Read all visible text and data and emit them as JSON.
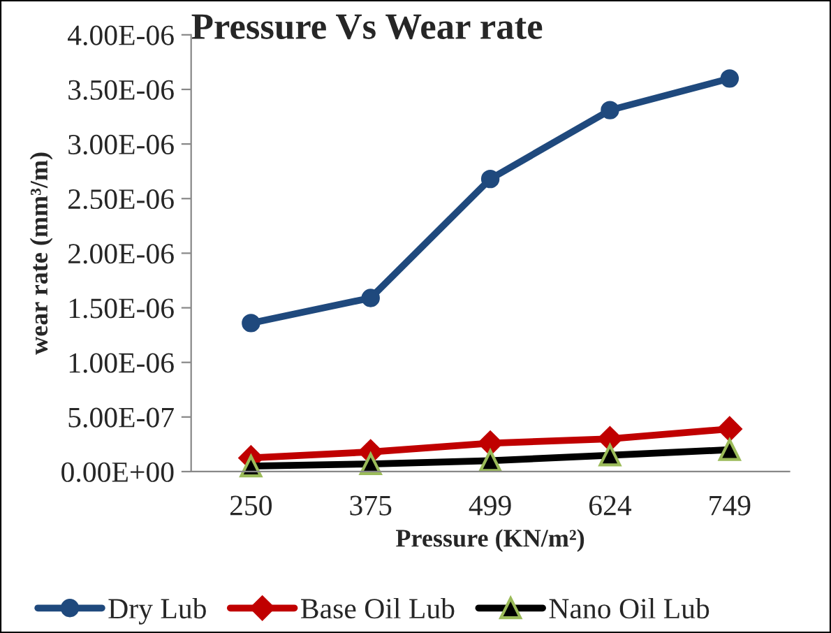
{
  "chart_data": {
    "type": "line",
    "title": "Pressure Vs Wear rate",
    "xlabel": "Pressure (KN/m²)",
    "ylabel": "wear rate (mm³/m)",
    "categories": [
      "250",
      "375",
      "499",
      "624",
      "749"
    ],
    "series": [
      {
        "name": "Dry Lub",
        "color": "#1f497d",
        "marker": "circle",
        "values": [
          1.36e-06,
          1.59e-06,
          2.68e-06,
          3.31e-06,
          3.6e-06
        ]
      },
      {
        "name": "Base Oil Lub",
        "color": "#c00000",
        "marker": "diamond",
        "values": [
          1.25e-07,
          1.8e-07,
          2.6e-07,
          3e-07,
          3.9e-07
        ]
      },
      {
        "name": "Nano Oil Lub",
        "color": "#000000",
        "marker": "triangle",
        "values": [
          5e-08,
          7e-08,
          1e-07,
          1.5e-07,
          2e-07
        ]
      }
    ],
    "ylim": [
      0,
      4e-06
    ],
    "yticks": [
      {
        "value": 0,
        "label": "0.00E+00"
      },
      {
        "value": 5e-07,
        "label": "5.00E-07"
      },
      {
        "value": 1e-06,
        "label": "1.00E-06"
      },
      {
        "value": 1.5e-06,
        "label": "1.50E-06"
      },
      {
        "value": 2e-06,
        "label": "2.00E-06"
      },
      {
        "value": 2.5e-06,
        "label": "2.50E-06"
      },
      {
        "value": 3e-06,
        "label": "3.00E-06"
      },
      {
        "value": 3.5e-06,
        "label": "3.50E-06"
      },
      {
        "value": 4e-06,
        "label": "4.00E-06"
      }
    ],
    "grid": false,
    "legend": "bottom"
  }
}
